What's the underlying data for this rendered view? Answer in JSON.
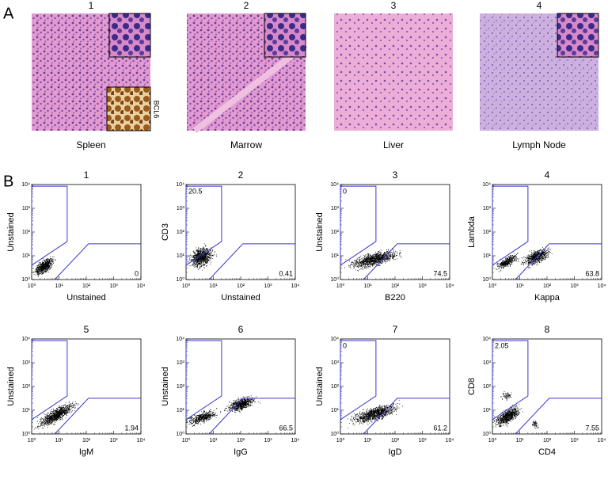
{
  "panel_a": {
    "label": "A",
    "images": [
      {
        "number": "1",
        "caption": "Spleen",
        "inset_label": "BCL6"
      },
      {
        "number": "2",
        "caption": "Marrow"
      },
      {
        "number": "3",
        "caption": "Liver"
      },
      {
        "number": "4",
        "caption": "Lymph Node"
      }
    ]
  },
  "panel_b": {
    "label": "B",
    "axis": {
      "lim": [
        1,
        10000
      ],
      "scale": "log",
      "ticks": [
        {
          "value": 1,
          "label": "10⁰"
        },
        {
          "value": 10,
          "label": "10¹"
        },
        {
          "value": 100,
          "label": "10²"
        },
        {
          "value": 1000,
          "label": "10³"
        },
        {
          "value": 10000,
          "label": "10⁴"
        }
      ]
    },
    "plots": [
      {
        "number": "1",
        "ylabel": "Unstained",
        "xlabel": "Unstained",
        "lower_right": 0
      },
      {
        "number": "2",
        "ylabel": "CD3",
        "xlabel": "Unstained",
        "upper_left": 20.5,
        "lower_right": 0.41
      },
      {
        "number": "3",
        "ylabel": "Unstained",
        "xlabel": "B220",
        "upper_left": 0,
        "lower_right": 74.5
      },
      {
        "number": "4",
        "ylabel": "Lambda",
        "xlabel": "Kappa",
        "lower_right": 63.8
      },
      {
        "number": "5",
        "ylabel": "Unstained",
        "xlabel": "IgM",
        "lower_right": 1.94
      },
      {
        "number": "6",
        "ylabel": "Unstained",
        "xlabel": "IgG",
        "lower_right": 66.5
      },
      {
        "number": "7",
        "ylabel": "Unstained",
        "xlabel": "IgD",
        "upper_left": 0,
        "lower_right": 61.2
      },
      {
        "number": "8",
        "ylabel": "CD8",
        "xlabel": "CD4",
        "upper_left": 2.05,
        "lower_right": 7.55
      }
    ]
  }
}
